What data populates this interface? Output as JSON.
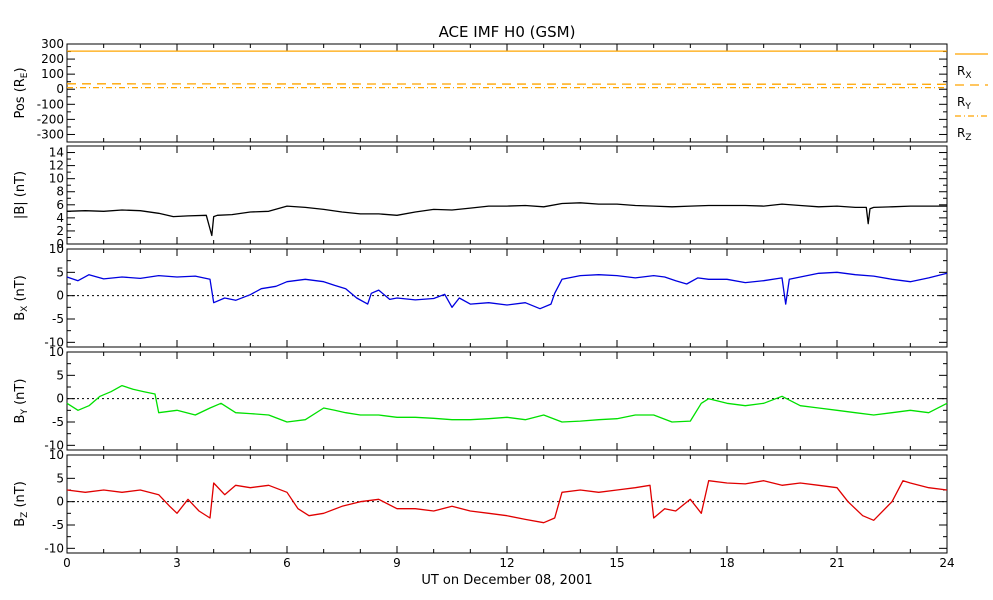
{
  "chart_data": {
    "title": "ACE IMF H0 (GSM)",
    "type": "line",
    "xlabel": "UT on December 08, 2001",
    "xlim": [
      0,
      24
    ],
    "xticks": [
      0,
      3,
      6,
      9,
      12,
      15,
      18,
      21,
      24
    ],
    "xtick_labels": [
      "0",
      "3",
      "6",
      "9",
      "12",
      "15",
      "18",
      "21",
      "24"
    ],
    "panels": [
      {
        "id": "pos",
        "ylabel": "Pos (R",
        "ylabel_sub": "E",
        "ylabel_suffix": ")",
        "ylim": [
          -350,
          300
        ],
        "yticks": [
          300,
          200,
          100,
          0,
          -100,
          -200,
          -300
        ],
        "ytick_labels": [
          "300",
          "200",
          "100",
          "0",
          "-100",
          "-200",
          "-300"
        ],
        "zero_line": false,
        "series": [
          {
            "name": "R",
            "sub": "X",
            "color": "#ffa500",
            "dash": "",
            "x": [
              0,
              24
            ],
            "values": [
              253,
              253
            ]
          },
          {
            "name": "R",
            "sub": "Y",
            "color": "#ffa500",
            "dash": "9,6",
            "x": [
              0,
              24
            ],
            "values": [
              36,
              33
            ]
          },
          {
            "name": "R",
            "sub": "Z",
            "color": "#ffa500",
            "dash": "6,3,1,3",
            "x": [
              0,
              24
            ],
            "values": [
              11,
              11
            ]
          }
        ]
      },
      {
        "id": "bt",
        "ylabel": "|B| (nT)",
        "ylim": [
          0,
          15
        ],
        "yticks": [
          0,
          2,
          4,
          6,
          8,
          10,
          12,
          14
        ],
        "ytick_labels": [
          "0",
          "2",
          "4",
          "6",
          "8",
          "10",
          "12",
          "14"
        ],
        "zero_line": false,
        "series": [
          {
            "color": "#000000",
            "x": [
              0,
              0.5,
              1,
              1.5,
              2,
              2.5,
              2.9,
              3.3,
              3.8,
              3.95,
              4.0,
              4.1,
              4.5,
              5,
              5.5,
              6,
              6.5,
              7,
              7.5,
              8,
              8.5,
              9,
              9.5,
              10,
              10.5,
              11,
              11.5,
              12,
              12.5,
              13,
              13.5,
              14,
              14.5,
              15,
              15.5,
              16,
              16.5,
              17,
              17.5,
              18,
              18.5,
              19,
              19.5,
              20,
              20.5,
              21,
              21.5,
              21.8,
              21.85,
              21.9,
              22,
              22.5,
              23,
              23.5,
              24
            ],
            "values": [
              5.0,
              5.1,
              5.0,
              5.2,
              5.1,
              4.7,
              4.2,
              4.3,
              4.4,
              1.3,
              4.2,
              4.4,
              4.5,
              4.9,
              5.0,
              5.8,
              5.6,
              5.3,
              4.9,
              4.6,
              4.6,
              4.4,
              4.9,
              5.3,
              5.2,
              5.5,
              5.8,
              5.8,
              5.9,
              5.7,
              6.2,
              6.3,
              6.1,
              6.1,
              5.9,
              5.8,
              5.7,
              5.8,
              5.9,
              5.9,
              5.9,
              5.8,
              6.1,
              5.9,
              5.7,
              5.8,
              5.6,
              5.6,
              3.1,
              5.4,
              5.6,
              5.7,
              5.8,
              5.8,
              5.8
            ]
          }
        ]
      },
      {
        "id": "bx",
        "ylabel": "B",
        "ylabel_sub": "X",
        "ylabel_suffix": " (nT)",
        "ylim": [
          -11,
          10
        ],
        "yticks": [
          -10,
          -5,
          0,
          5,
          10
        ],
        "ytick_labels": [
          "-10",
          "-5",
          "0",
          "5",
          "10"
        ],
        "zero_line": true,
        "series": [
          {
            "color": "#0000e0",
            "x": [
              0,
              0.3,
              0.6,
              1,
              1.5,
              2,
              2.5,
              3,
              3.5,
              3.9,
              4.0,
              4.3,
              4.6,
              5,
              5.3,
              5.7,
              6,
              6.5,
              7,
              7.3,
              7.6,
              7.9,
              8.2,
              8.3,
              8.5,
              8.8,
              9,
              9.5,
              10,
              10.3,
              10.5,
              10.7,
              11,
              11.5,
              12,
              12.5,
              12.9,
              13.2,
              13.3,
              13.5,
              14,
              14.5,
              15,
              15.5,
              16,
              16.3,
              16.6,
              16.9,
              17.2,
              17.5,
              18,
              18.5,
              19,
              19.5,
              19.6,
              19.7,
              20,
              20.5,
              21,
              21.5,
              22,
              22.5,
              23,
              23.5,
              24
            ],
            "values": [
              4.0,
              3.2,
              4.5,
              3.6,
              4.0,
              3.7,
              4.3,
              4.0,
              4.2,
              3.5,
              -1.5,
              -0.5,
              -1.0,
              0.2,
              1.5,
              2.0,
              3.0,
              3.5,
              3.0,
              2.2,
              1.5,
              -0.5,
              -1.8,
              0.5,
              1.2,
              -0.8,
              -0.5,
              -0.9,
              -0.6,
              0.3,
              -2.5,
              -0.5,
              -1.8,
              -1.5,
              -2.0,
              -1.5,
              -2.8,
              -1.8,
              0.5,
              3.5,
              4.3,
              4.5,
              4.3,
              3.8,
              4.3,
              4.0,
              3.2,
              2.5,
              3.8,
              3.5,
              3.5,
              2.8,
              3.2,
              3.8,
              -1.8,
              3.5,
              4.0,
              4.8,
              5.0,
              4.5,
              4.2,
              3.5,
              3.0,
              3.8,
              4.8
            ]
          }
        ]
      },
      {
        "id": "by",
        "ylabel": "B",
        "ylabel_sub": "Y",
        "ylabel_suffix": " (nT)",
        "ylim": [
          -11,
          10
        ],
        "yticks": [
          -10,
          -5,
          0,
          5,
          10
        ],
        "ytick_labels": [
          "-10",
          "-5",
          "0",
          "5",
          "10"
        ],
        "zero_line": true,
        "series": [
          {
            "color": "#00e000",
            "x": [
              0,
              0.3,
              0.6,
              0.9,
              1.2,
              1.5,
              1.8,
              2.1,
              2.4,
              2.5,
              3,
              3.5,
              3.9,
              4.2,
              4.6,
              5,
              5.5,
              6,
              6.5,
              7,
              7.3,
              7.6,
              8,
              8.5,
              9,
              9.5,
              10,
              10.5,
              11,
              11.5,
              12,
              12.5,
              13,
              13.5,
              14,
              14.5,
              15,
              15.5,
              16,
              16.5,
              17,
              17.3,
              17.5,
              18,
              18.5,
              19,
              19.5,
              20,
              20.5,
              21,
              21.5,
              22,
              22.5,
              23,
              23.5,
              24
            ],
            "values": [
              -1.0,
              -2.5,
              -1.5,
              0.5,
              1.5,
              2.8,
              2.0,
              1.5,
              1.0,
              -3.0,
              -2.5,
              -3.5,
              -2.0,
              -1.0,
              -3.0,
              -3.2,
              -3.5,
              -5.0,
              -4.5,
              -2.0,
              -2.5,
              -3.0,
              -3.5,
              -3.5,
              -4.0,
              -4.0,
              -4.2,
              -4.5,
              -4.5,
              -4.3,
              -4.0,
              -4.5,
              -3.5,
              -5.0,
              -4.8,
              -4.5,
              -4.3,
              -3.5,
              -3.5,
              -5.0,
              -4.8,
              -1.0,
              0.0,
              -1.0,
              -1.5,
              -1.0,
              0.5,
              -1.5,
              -2.0,
              -2.5,
              -3.0,
              -3.5,
              -3.0,
              -2.5,
              -3.0,
              -1.0
            ]
          }
        ]
      },
      {
        "id": "bz",
        "ylabel": "B",
        "ylabel_sub": "Z",
        "ylabel_suffix": " (nT)",
        "ylim": [
          -11,
          10
        ],
        "yticks": [
          -10,
          -5,
          0,
          5,
          10
        ],
        "ytick_labels": [
          "-10",
          "-5",
          "0",
          "5",
          "10"
        ],
        "zero_line": true,
        "series": [
          {
            "color": "#e00000",
            "x": [
              0,
              0.5,
              1,
              1.5,
              2,
              2.5,
              2.8,
              3.0,
              3.3,
              3.6,
              3.9,
              4.0,
              4.3,
              4.6,
              5,
              5.5,
              6,
              6.3,
              6.6,
              7,
              7.5,
              8,
              8.5,
              9,
              9.5,
              10,
              10.5,
              11,
              11.5,
              12,
              12.5,
              13,
              13.3,
              13.5,
              14,
              14.5,
              15,
              15.5,
              15.9,
              16.0,
              16.3,
              16.6,
              17,
              17.3,
              17.5,
              18,
              18.5,
              19,
              19.5,
              20,
              20.5,
              21,
              21.3,
              21.7,
              22,
              22.5,
              22.8,
              23,
              23.5,
              24
            ],
            "values": [
              2.5,
              2.0,
              2.5,
              2.0,
              2.5,
              1.5,
              -1.0,
              -2.5,
              0.5,
              -2.0,
              -3.5,
              4.0,
              1.5,
              3.5,
              3.0,
              3.5,
              2.0,
              -1.5,
              -3.0,
              -2.5,
              -1.0,
              0.0,
              0.5,
              -1.5,
              -1.5,
              -2.0,
              -1.0,
              -2.0,
              -2.5,
              -3.0,
              -3.8,
              -4.5,
              -3.5,
              2.0,
              2.5,
              2.0,
              2.5,
              3.0,
              3.5,
              -3.5,
              -1.5,
              -2.0,
              0.5,
              -2.5,
              4.5,
              4.0,
              3.8,
              4.5,
              3.5,
              4.0,
              3.5,
              3.0,
              0.0,
              -3.0,
              -4.0,
              0.0,
              4.5,
              4.0,
              3.0,
              2.5
            ]
          }
        ]
      }
    ]
  }
}
